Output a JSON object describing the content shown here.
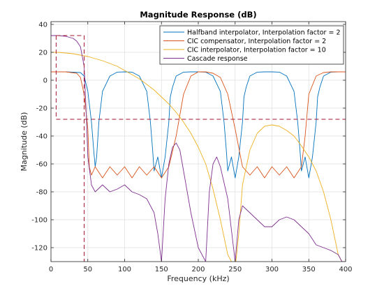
{
  "chart_data": {
    "type": "line",
    "title": "Magnitude Response (dB)",
    "xlabel": "Frequency (kHz)",
    "ylabel": "Magnitude (dB)",
    "xlim": [
      0,
      400
    ],
    "ylim": [
      -130,
      42
    ],
    "xticks": [
      0,
      50,
      100,
      150,
      200,
      250,
      300,
      350,
      400
    ],
    "yticks": [
      -120,
      -100,
      -80,
      -60,
      -40,
      -20,
      0,
      20,
      40
    ],
    "grid": true,
    "legend_position": "top-right",
    "series": [
      {
        "name": "Halfband interpolator, Interpolation factor = 2",
        "color": "#0072BD",
        "x": [
          0,
          20,
          40,
          45,
          50,
          55,
          58,
          60,
          62,
          65,
          70,
          80,
          90,
          100,
          110,
          120,
          130,
          135,
          138,
          140,
          145,
          150,
          155,
          160,
          162,
          165,
          170,
          180,
          190,
          200,
          210,
          220,
          230,
          235,
          238,
          240,
          245,
          250,
          255,
          260,
          262,
          265,
          270,
          280,
          290,
          300,
          310,
          320,
          330,
          335,
          338,
          340,
          345,
          350,
          355,
          360,
          362,
          365,
          370,
          380,
          390,
          400
        ],
        "y": [
          6,
          6,
          5.5,
          3,
          -8,
          -30,
          -50,
          -62,
          -55,
          -30,
          -8,
          3,
          5.8,
          6,
          5.8,
          3,
          -8,
          -30,
          -50,
          -65,
          -55,
          -70,
          -55,
          -30,
          -12,
          -5,
          3,
          5.8,
          6,
          6,
          5.8,
          3,
          -8,
          -30,
          -50,
          -65,
          -55,
          -70,
          -55,
          -30,
          -12,
          -5,
          3,
          5.8,
          6,
          6,
          5.8,
          3,
          -8,
          -30,
          -50,
          -65,
          -55,
          -70,
          -55,
          -30,
          -12,
          -5,
          3,
          5.8,
          6,
          6
        ]
      },
      {
        "name": "CIC compensator, Interpolation factor = 2",
        "color": "#D95319",
        "x": [
          0,
          20,
          35,
          40,
          45,
          50,
          52,
          55,
          60,
          70,
          80,
          90,
          100,
          110,
          120,
          130,
          140,
          150,
          160,
          170,
          180,
          190,
          200,
          210,
          220,
          230,
          240,
          250,
          260,
          270,
          280,
          290,
          300,
          310,
          320,
          330,
          340,
          345,
          350,
          360,
          370,
          380,
          390,
          400
        ],
        "y": [
          6,
          6,
          5,
          2,
          -10,
          -35,
          -62,
          -68,
          -62,
          -70,
          -62,
          -68,
          -62,
          -70,
          -62,
          -68,
          -62,
          -70,
          -62,
          -40,
          -10,
          3,
          6,
          6,
          5,
          2,
          -10,
          -35,
          -62,
          -68,
          -62,
          -70,
          -62,
          -68,
          -62,
          -70,
          -62,
          -40,
          -10,
          3,
          5.5,
          6,
          6,
          6
        ]
      },
      {
        "name": "CIC interpolator, Interpolation factor = 10",
        "color": "#EDB120",
        "x": [
          0,
          10,
          20,
          30,
          40,
          50,
          60,
          70,
          80,
          90,
          100,
          110,
          120,
          130,
          140,
          150,
          160,
          170,
          180,
          190,
          200,
          210,
          220,
          230,
          240,
          250,
          255,
          260,
          270,
          280,
          290,
          300,
          310,
          320,
          330,
          340,
          350,
          360,
          370,
          380,
          390,
          400
        ],
        "y": [
          20,
          20,
          19.5,
          19,
          18,
          17,
          15.5,
          14,
          12,
          10,
          7,
          4,
          1,
          -3,
          -7,
          -12,
          -17,
          -23,
          -30,
          -38,
          -48,
          -60,
          -78,
          -100,
          -125,
          -135,
          -110,
          -75,
          -50,
          -38,
          -33,
          -32,
          -33,
          -36,
          -40,
          -47,
          -55,
          -65,
          -80,
          -100,
          -125,
          -135
        ]
      },
      {
        "name": "Cascade response",
        "color": "#7E2F8E",
        "x": [
          0,
          10,
          20,
          30,
          35,
          40,
          45,
          48,
          50,
          55,
          60,
          70,
          80,
          90,
          100,
          110,
          120,
          130,
          140,
          145,
          150,
          155,
          160,
          165,
          170,
          175,
          180,
          190,
          200,
          210,
          215,
          220,
          225,
          230,
          240,
          250,
          255,
          260,
          270,
          280,
          290,
          300,
          310,
          320,
          330,
          340,
          350,
          360,
          370,
          380,
          390,
          395,
          400
        ],
        "y": [
          32,
          32,
          31.5,
          30,
          28,
          24,
          10,
          -25,
          -55,
          -75,
          -80,
          -75,
          -80,
          -78,
          -75,
          -80,
          -82,
          -85,
          -95,
          -110,
          -130,
          -85,
          -60,
          -48,
          -45,
          -50,
          -65,
          -95,
          -120,
          -130,
          -80,
          -60,
          -55,
          -62,
          -85,
          -130,
          -100,
          -90,
          -95,
          -100,
          -105,
          -105,
          -100,
          -98,
          -100,
          -105,
          -110,
          -118,
          -120,
          -122,
          -125,
          -130,
          -130
        ]
      }
    ],
    "reference_lines": [
      {
        "color": "#A2142F",
        "style": "dashed",
        "x": [
          7,
          45,
          45
        ],
        "y": [
          32,
          32,
          -130
        ]
      },
      {
        "color": "#A2142F",
        "style": "dashed",
        "x": [
          7,
          7,
          400
        ],
        "y": [
          32,
          -28,
          -28
        ]
      }
    ]
  }
}
